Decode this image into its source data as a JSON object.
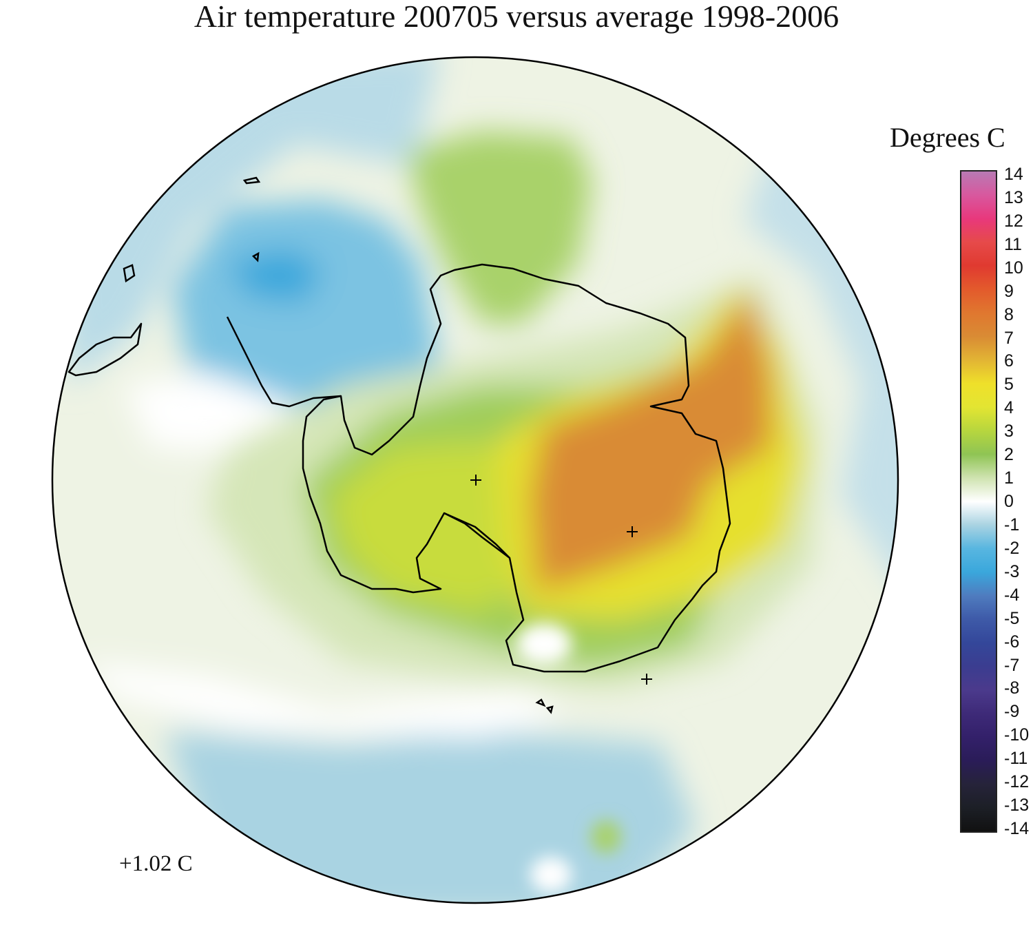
{
  "title": "Air temperature 200705 versus average 1998-2006",
  "legend": {
    "title": "Degrees C",
    "ticks": [
      "14",
      "13",
      "12",
      "11",
      "10",
      "9",
      "8",
      "7",
      "6",
      "5",
      "4",
      "3",
      "2",
      "1",
      "0",
      "-1",
      "-2",
      "-3",
      "-4",
      "-5",
      "-6",
      "-7",
      "-8",
      "-9",
      "-10",
      "-11",
      "-12",
      "-13",
      "-14"
    ],
    "colors": {
      "14": "#b87ab4",
      "13": "#d8589e",
      "12": "#e8387c",
      "11": "#e64a4a",
      "10": "#e03a30",
      "9": "#e35a2c",
      "8": "#e0772f",
      "7": "#d98b34",
      "6": "#e2b434",
      "5": "#efe02a",
      "4": "#e3e532",
      "3": "#b7d63e",
      "2": "#8fc454",
      "1": "#cfe3b0",
      "0": "#ffffff",
      "-1": "#a9d3e2",
      "-2": "#58b6e0",
      "-3": "#3aa7dc",
      "-4": "#4f7cbf",
      "-5": "#3e5aa8",
      "-6": "#34479a",
      "-7": "#3b3d90",
      "-8": "#4b3a8c",
      "-9": "#3e2a78",
      "-10": "#33206a",
      "-11": "#2a1c58",
      "-12": "#26233a",
      "-13": "#1c1f26",
      "-14": "#111111"
    }
  },
  "mean_anomaly": "+1.02 C",
  "map_features": [
    "antarctica-coastline",
    "south-america-tip",
    "pole-marker",
    "grid-markers"
  ],
  "colors": {
    "cold_strong": "#3aa7dc",
    "cold_mild": "#a9d3e2",
    "neutral": "#ffffff",
    "warm_mild": "#dfe8c8",
    "warm": "#b7d63e",
    "hot": "#e3e532",
    "hottest": "#d98b34"
  }
}
